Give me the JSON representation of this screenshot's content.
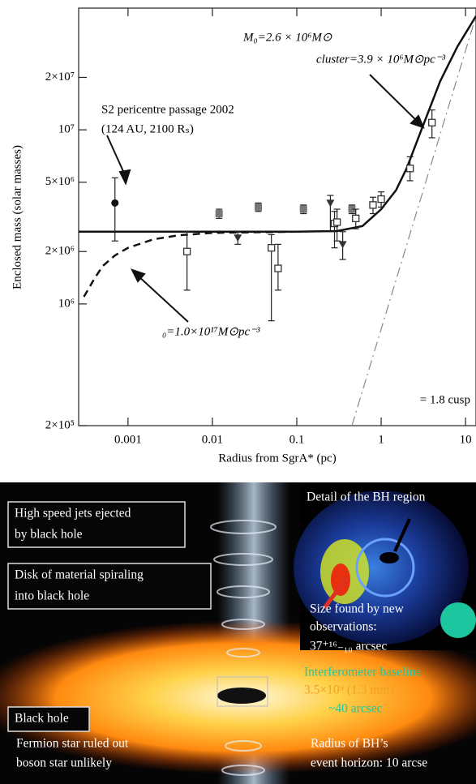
{
  "chart_data": {
    "type": "scatter",
    "x_label": "Radius from SgrA* (pc)",
    "y_label": "Enclosed mass (solar masses)",
    "log_x": true,
    "log_y": true,
    "xlim": [
      0.00026,
      13.3
    ],
    "ylim": [
      200000,
      50000000
    ],
    "xticks": [
      0.001,
      0.01,
      0.1,
      1,
      10
    ],
    "yticks": [
      {
        "value": 200000,
        "label": "2×10⁵"
      },
      {
        "value": 1000000,
        "label": "10⁶"
      },
      {
        "value": 2000000,
        "label": "2×10⁶"
      },
      {
        "value": 5000000,
        "label": "5×10⁶"
      },
      {
        "value": 10000000,
        "label": "10⁷"
      },
      {
        "value": 20000000,
        "label": "2×10⁷"
      }
    ],
    "annotations": [
      "M₀=2.6 × 10⁶M⊙",
      " cluster=3.9 × 10⁶M⊙pc⁻³",
      "S2 pericentre passage 2002",
      "(124 AU, 2100 Rₛ)",
      "₀=1.0×10¹⁷M⊙pc⁻³",
      "= 1.8 cusp"
    ],
    "series": [
      {
        "kind": "line",
        "dash": "solid",
        "color": "#111111",
        "x": [
          0.00026,
          0.1,
          0.3,
          0.6,
          1,
          1.5,
          2,
          3,
          5,
          8,
          13.3
        ],
        "values": [
          2600000,
          2600000,
          2620000,
          2800000,
          3500000,
          4500000,
          6000000,
          10000000,
          19000000,
          30000000,
          45000000
        ]
      },
      {
        "kind": "line",
        "dash": "dashed",
        "color": "#111111",
        "x": [
          0.0003,
          0.0004,
          0.0005,
          0.0007,
          0.001,
          0.002,
          0.004,
          0.01,
          0.1
        ],
        "values": [
          1100000,
          1400000,
          1650000,
          1900000,
          2100000,
          2350000,
          2480000,
          2560000,
          2600000
        ]
      },
      {
        "kind": "line",
        "dash": "dashdot",
        "color": "#888888",
        "x": [
          0.45,
          13.3
        ],
        "values": [
          200000,
          45000000
        ]
      },
      {
        "kind": "points",
        "marker": "circle",
        "color": "#111111",
        "x": [
          0.0007
        ],
        "values": [
          3800000
        ],
        "lower": [
          2300000
        ],
        "upper": [
          5300000
        ]
      },
      {
        "kind": "points",
        "marker": "square",
        "color": "#777777",
        "x": [
          0.012,
          0.035,
          0.12,
          0.45
        ],
        "values": [
          3300000,
          3600000,
          3500000,
          3500000
        ],
        "lower": [
          3100000,
          3400000,
          3300000,
          3300000
        ],
        "upper": [
          3500000,
          3800000,
          3700000,
          3700000
        ]
      },
      {
        "kind": "points",
        "marker": "square-open",
        "color": "#333333",
        "x": [
          0.005,
          0.05,
          0.06,
          0.28,
          0.3,
          0.5,
          0.8,
          1.0,
          2.2,
          4
        ],
        "values": [
          2000000,
          2100000,
          1600000,
          2900000,
          2950000,
          3100000,
          3700000,
          4000000,
          6000000,
          11000000
        ],
        "lower": [
          1200000,
          800000,
          1200000,
          2100000,
          2300000,
          2700000,
          3300000,
          3600000,
          5100000,
          9000000
        ],
        "upper": [
          2600000,
          2500000,
          2200000,
          3400000,
          3500000,
          3500000,
          4100000,
          4400000,
          7000000,
          13000000
        ]
      },
      {
        "kind": "points",
        "marker": "triangle-down",
        "color": "#333333",
        "x": [
          0.02,
          0.25,
          0.35
        ],
        "values": [
          2400000,
          3800000,
          2200000
        ],
        "lower": [
          2200000,
          2600000,
          1800000
        ],
        "upper": [
          2600000,
          4200000,
          2600000
        ]
      }
    ]
  },
  "illustration": {
    "labels": [
      "High speed jets ejected",
      "by black hole",
      "Disk of material spiraling",
      "into black hole",
      "Black hole",
      "Fermion star ruled out",
      "boson star unlikely",
      "Detail of the BH region",
      "Size found by new",
      "observations:",
      "37⁺¹⁶₋₁₀  arcsec",
      "Interferometer baseline",
      "3.5×10⁹   (1.3 mm)",
      "~40   arcsec",
      "Radius of BH’s",
      "event horizon: 10   arcse"
    ]
  }
}
